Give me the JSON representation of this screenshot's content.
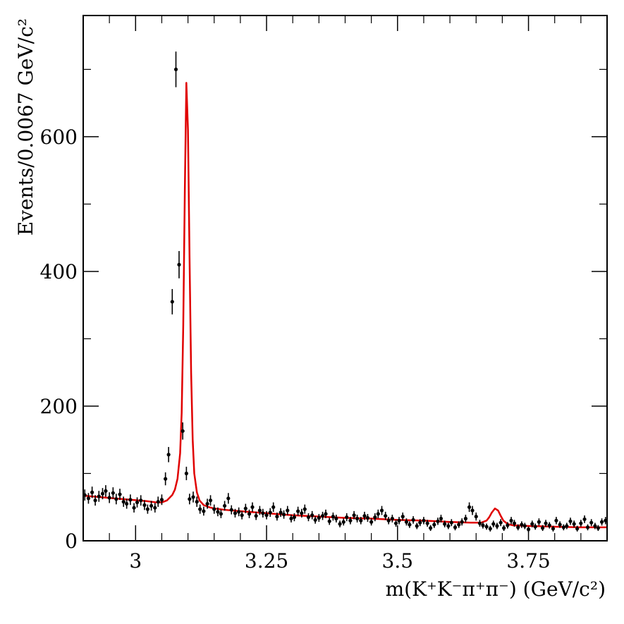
{
  "chart_data": {
    "type": "scatter",
    "title": "",
    "xlabel": "m(K⁺K⁻π⁺π⁻) (GeV/c²)",
    "ylabel": "Events/0.0067 GeV/c²",
    "xlim": [
      2.9,
      3.9
    ],
    "ylim": [
      0,
      780
    ],
    "x_ticks": [
      3,
      3.25,
      3.5,
      3.75
    ],
    "x_tick_labels": [
      "3",
      "3.25",
      "3.5",
      "3.75"
    ],
    "y_ticks": [
      0,
      200,
      400,
      600
    ],
    "y_tick_labels": [
      "0",
      "200",
      "400",
      "600"
    ],
    "grid": false,
    "legend": "none",
    "colors": {
      "data": "#000000",
      "fit": "#e00000",
      "frame": "#000000"
    },
    "series": [
      {
        "kind": "points-with-error-bars",
        "x": [
          2.903,
          2.91,
          2.917,
          2.923,
          2.93,
          2.937,
          2.943,
          2.95,
          2.957,
          2.963,
          2.97,
          2.977,
          2.983,
          2.99,
          2.997,
          3.003,
          3.01,
          3.017,
          3.023,
          3.03,
          3.037,
          3.043,
          3.05,
          3.057,
          3.063,
          3.07,
          3.077,
          3.083,
          3.09,
          3.097,
          3.103,
          3.11,
          3.117,
          3.123,
          3.13,
          3.137,
          3.143,
          3.15,
          3.157,
          3.163,
          3.17,
          3.177,
          3.183,
          3.19,
          3.197,
          3.203,
          3.21,
          3.217,
          3.223,
          3.23,
          3.237,
          3.243,
          3.25,
          3.257,
          3.263,
          3.27,
          3.277,
          3.283,
          3.29,
          3.297,
          3.303,
          3.31,
          3.317,
          3.323,
          3.33,
          3.337,
          3.343,
          3.35,
          3.357,
          3.363,
          3.37,
          3.377,
          3.383,
          3.39,
          3.397,
          3.403,
          3.41,
          3.417,
          3.423,
          3.43,
          3.437,
          3.443,
          3.45,
          3.457,
          3.463,
          3.47,
          3.477,
          3.483,
          3.49,
          3.497,
          3.503,
          3.51,
          3.517,
          3.523,
          3.53,
          3.537,
          3.543,
          3.55,
          3.557,
          3.563,
          3.57,
          3.577,
          3.583,
          3.59,
          3.597,
          3.603,
          3.61,
          3.617,
          3.623,
          3.63,
          3.637,
          3.643,
          3.65,
          3.657,
          3.663,
          3.67,
          3.677,
          3.683,
          3.69,
          3.697,
          3.703,
          3.71,
          3.717,
          3.723,
          3.73,
          3.737,
          3.743,
          3.75,
          3.757,
          3.763,
          3.77,
          3.777,
          3.783,
          3.79,
          3.797,
          3.803,
          3.81,
          3.817,
          3.823,
          3.83,
          3.837,
          3.843,
          3.85,
          3.857,
          3.863,
          3.87,
          3.877,
          3.883,
          3.89,
          3.897
        ],
        "y": [
          68,
          63,
          72,
          60,
          66,
          70,
          74,
          64,
          71,
          62,
          69,
          58,
          55,
          61,
          49,
          57,
          60,
          53,
          47,
          52,
          49,
          58,
          61,
          92,
          128,
          355,
          700,
          410,
          163,
          100,
          62,
          65,
          58,
          47,
          44,
          55,
          60,
          47,
          43,
          40,
          52,
          63,
          46,
          41,
          43,
          38,
          48,
          40,
          50,
          37,
          45,
          41,
          38,
          42,
          50,
          36,
          42,
          39,
          45,
          33,
          35,
          44,
          41,
          47,
          35,
          38,
          31,
          34,
          37,
          40,
          29,
          36,
          33,
          25,
          28,
          35,
          30,
          38,
          33,
          30,
          37,
          34,
          28,
          35,
          40,
          45,
          37,
          30,
          33,
          26,
          30,
          36,
          28,
          24,
          31,
          22,
          27,
          30,
          26,
          19,
          24,
          29,
          33,
          25,
          22,
          27,
          20,
          24,
          28,
          33,
          50,
          45,
          36,
          26,
          23,
          21,
          18,
          25,
          22,
          27,
          19,
          23,
          30,
          26,
          20,
          24,
          22,
          17,
          25,
          21,
          28,
          19,
          26,
          23,
          18,
          30,
          24,
          20,
          22,
          29,
          25,
          18,
          26,
          32,
          20,
          27,
          22,
          19,
          28,
          30
        ]
      },
      {
        "kind": "fit-curve",
        "x": [
          2.9,
          2.93,
          2.96,
          2.99,
          3.02,
          3.04,
          3.05,
          3.06,
          3.07,
          3.075,
          3.08,
          3.085,
          3.088,
          3.091,
          3.094,
          3.0969,
          3.1,
          3.103,
          3.106,
          3.109,
          3.112,
          3.117,
          3.122,
          3.13,
          3.14,
          3.15,
          3.17,
          3.2,
          3.25,
          3.3,
          3.35,
          3.4,
          3.45,
          3.5,
          3.55,
          3.6,
          3.64,
          3.66,
          3.67,
          3.675,
          3.68,
          3.686,
          3.692,
          3.697,
          3.702,
          3.71,
          3.72,
          3.75,
          3.8,
          3.85,
          3.9
        ],
        "y": [
          67,
          65,
          63,
          61,
          59,
          57,
          57,
          60,
          68,
          76,
          92,
          130,
          190,
          320,
          520,
          680,
          610,
          420,
          250,
          150,
          100,
          72,
          60,
          53,
          50,
          48,
          46,
          44,
          41,
          38,
          36,
          34,
          33,
          31,
          30,
          28,
          27,
          27,
          30,
          35,
          42,
          48,
          45,
          37,
          30,
          25,
          23,
          22,
          21,
          20,
          20
        ]
      }
    ]
  }
}
